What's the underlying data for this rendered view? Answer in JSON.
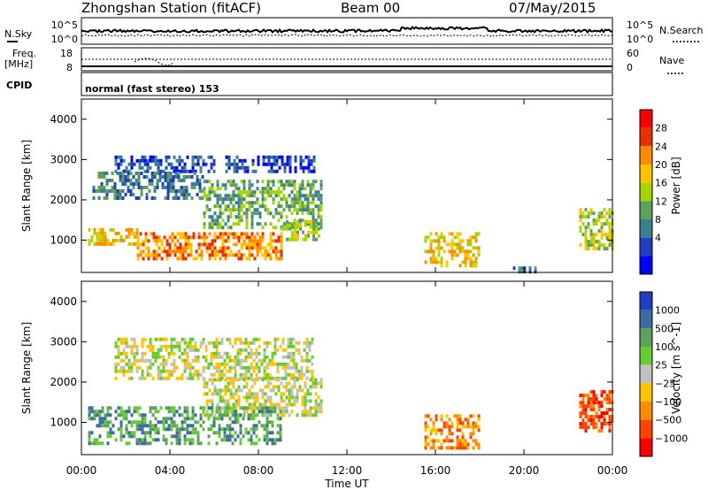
{
  "header": {
    "station": "Zhongshan Station (fitACF)",
    "beam": "Beam 00",
    "date": "07/May/2015"
  },
  "panels": {
    "sky": {
      "label": "N.Sky",
      "tick_hi": "10^5",
      "tick_lo": "10^0",
      "right_label": "N.Search"
    },
    "freq": {
      "label": "Freq.",
      "unit": "[MHz]",
      "tick_hi": "18",
      "tick_lo": "8",
      "right_tick_hi": "60",
      "right_tick_lo": "0",
      "right_label": "Nave"
    },
    "cpid": {
      "label": "CPID",
      "text": "normal (fast stereo) 153"
    }
  },
  "chart_data": [
    {
      "type": "heatmap",
      "name": "power",
      "ylabel": "Slant Range [km]",
      "ylim": [
        200,
        4500
      ],
      "yticks": [
        "1000",
        "2000",
        "3000",
        "4000"
      ],
      "xticks": [
        "00:00",
        "04:00",
        "08:00",
        "12:00",
        "16:00",
        "20:00",
        "00:00"
      ],
      "xlim_hours": [
        0,
        24
      ],
      "colorbar": {
        "label": "Power [dB]",
        "ticks": [
          "28",
          "24",
          "20",
          "16",
          "12",
          "8",
          "4"
        ],
        "colors": [
          "#ff0000",
          "#e83000",
          "#ff8c00",
          "#ffc400",
          "#a6d400",
          "#5fa05f",
          "#3a8090",
          "#1f3fbf",
          "#0000ff"
        ]
      },
      "regions": [
        {
          "t0": 1.5,
          "t1": 6.0,
          "r0": 2700,
          "r1": 3100,
          "level": 1
        },
        {
          "t0": 6.5,
          "t1": 10.5,
          "r0": 2700,
          "r1": 3100,
          "level": 1
        },
        {
          "t0": 0.5,
          "t1": 5.5,
          "r0": 2000,
          "r1": 2700,
          "level": 2
        },
        {
          "t0": 5.5,
          "t1": 10.8,
          "r0": 1300,
          "r1": 2500,
          "level": 3
        },
        {
          "t0": 0.3,
          "t1": 2.5,
          "r0": 900,
          "r1": 1300,
          "level": 5
        },
        {
          "t0": 2.5,
          "t1": 9.0,
          "r0": 500,
          "r1": 1200,
          "level": 6
        },
        {
          "t0": 9.0,
          "t1": 10.8,
          "r0": 1000,
          "r1": 1500,
          "level": 4
        },
        {
          "t0": 15.5,
          "t1": 18.0,
          "r0": 400,
          "r1": 1200,
          "level": 5
        },
        {
          "t0": 19.5,
          "t1": 20.5,
          "r0": 250,
          "r1": 350,
          "level": 2
        },
        {
          "t0": 22.5,
          "t1": 24.0,
          "r0": 800,
          "r1": 1800,
          "level": 4
        }
      ]
    },
    {
      "type": "heatmap",
      "name": "velocity",
      "ylabel": "Slant Range [km]",
      "ylim": [
        200,
        4500
      ],
      "yticks": [
        "1000",
        "2000",
        "3000",
        "4000"
      ],
      "xticks": [
        "00:00",
        "04:00",
        "08:00",
        "12:00",
        "16:00",
        "20:00",
        "00:00"
      ],
      "xlim_hours": [
        0,
        24
      ],
      "xlabel": "Time UT",
      "colorbar": {
        "label": "Velocity [m s^-1]",
        "ticks": [
          "1000",
          "500",
          "100",
          "25",
          "−25",
          "−100",
          "−500",
          "−1000"
        ],
        "colors": [
          "#1f3fbf",
          "#3a6ea0",
          "#5fa05f",
          "#66cc33",
          "#c0c0c0",
          "#ffc400",
          "#ff8c00",
          "#ff4400",
          "#ff0000"
        ]
      },
      "regions": [
        {
          "t0": 1.5,
          "t1": 10.5,
          "r0": 2100,
          "r1": 3100,
          "level": 4
        },
        {
          "t0": 5.5,
          "t1": 10.8,
          "r0": 1200,
          "r1": 2100,
          "level": 4
        },
        {
          "t0": 0.3,
          "t1": 9.0,
          "r0": 500,
          "r1": 1400,
          "level": 6
        },
        {
          "t0": 15.5,
          "t1": 18.0,
          "r0": 400,
          "r1": 1200,
          "level": 2
        },
        {
          "t0": 22.5,
          "t1": 24.0,
          "r0": 800,
          "r1": 1800,
          "level": 1
        }
      ]
    }
  ]
}
